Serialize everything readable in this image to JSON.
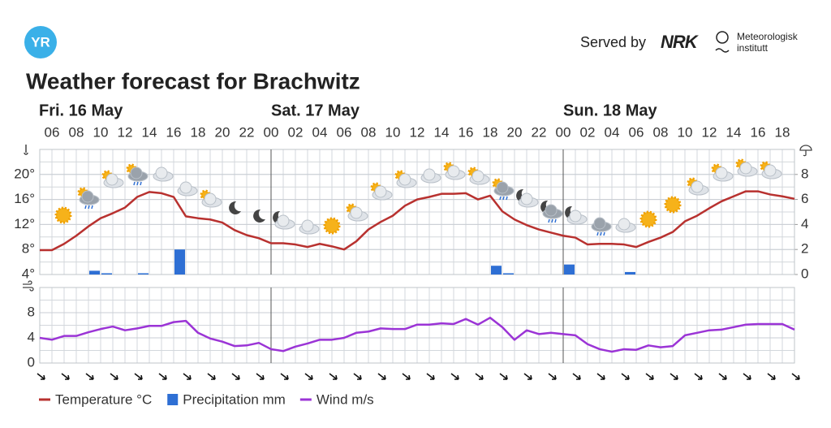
{
  "header": {
    "logo": "YR",
    "served_by": "Served by",
    "brand": "NRK",
    "institute": [
      "Meteorologisk",
      "institutt"
    ]
  },
  "chart_data": [
    {
      "type": "line",
      "title": "Weather forecast for Brachwitz",
      "days": [
        "Fri. 16 May",
        "Sat. 17 May",
        "Sun. 18 May"
      ],
      "times": [
        "06",
        "08",
        "10",
        "12",
        "14",
        "16",
        "18",
        "20",
        "22",
        "00",
        "02",
        "04",
        "06",
        "08",
        "10",
        "12",
        "14",
        "16",
        "18",
        "20",
        "22",
        "00",
        "02",
        "04",
        "06",
        "08",
        "10",
        "12",
        "14",
        "16",
        "18"
      ],
      "ylim": [
        4,
        24
      ],
      "yticks": [
        {
          "value": 4,
          "label": "4°"
        },
        {
          "value": 8,
          "label": "8°"
        },
        {
          "value": 12,
          "label": "12°"
        },
        {
          "value": 16,
          "label": "16°"
        },
        {
          "value": 20,
          "label": "20°"
        }
      ],
      "y2lim": [
        0,
        10
      ],
      "y2ticks": [
        0,
        2,
        4,
        6,
        8
      ],
      "grid": true,
      "series": [
        {
          "name": "Temperature °C",
          "color": "#b8312f",
          "values": [
            7.9,
            7.9,
            8.9,
            10.2,
            11.7,
            13.0,
            13.8,
            14.7,
            16.4,
            17.2,
            17.0,
            16.4,
            13.3,
            13.0,
            12.8,
            12.3,
            11.1,
            10.3,
            9.8,
            9.0,
            9.0,
            8.8,
            8.4,
            8.9,
            8.5,
            8.0,
            9.3,
            11.2,
            12.4,
            13.4,
            15.0,
            16.0,
            16.4,
            16.9,
            16.9,
            17.0,
            16.0,
            16.6,
            14.1,
            12.8,
            11.9,
            11.2,
            10.7,
            10.2,
            9.9,
            8.8,
            8.9,
            8.9,
            8.8,
            8.4,
            9.2,
            9.9,
            10.8,
            12.5,
            13.4,
            14.6,
            15.7,
            16.5,
            17.3,
            17.3,
            16.8,
            16.5,
            16.1
          ]
        },
        {
          "name": "Precipitation mm",
          "color": "#2e6fd4",
          "axis": "y2",
          "values": [
            0,
            0,
            0,
            0,
            0.3,
            0.1,
            0,
            0,
            0.1,
            0,
            0,
            2.0,
            0,
            0,
            0,
            0,
            0,
            0,
            0,
            0,
            0,
            0,
            0,
            0,
            0,
            0,
            0,
            0,
            0,
            0,
            0,
            0,
            0,
            0,
            0,
            0,
            0,
            0.7,
            0.1,
            0,
            0,
            0,
            0,
            0.8,
            0,
            0,
            0,
            0,
            0.2,
            0,
            0,
            0,
            0,
            0,
            0,
            0,
            0,
            0,
            0,
            0,
            0,
            0,
            0
          ]
        }
      ]
    },
    {
      "type": "line",
      "ylim": [
        0,
        12
      ],
      "yticks": [
        0,
        4,
        8
      ],
      "grid": true,
      "series": [
        {
          "name": "Wind m/s",
          "color": "#9b34d6",
          "values": [
            4.0,
            3.7,
            4.3,
            4.3,
            4.9,
            5.4,
            5.8,
            5.2,
            5.5,
            5.9,
            5.9,
            6.5,
            6.7,
            4.8,
            3.9,
            3.4,
            2.7,
            2.8,
            3.2,
            2.2,
            1.9,
            2.6,
            3.1,
            3.7,
            3.7,
            4.0,
            4.8,
            5.0,
            5.5,
            5.4,
            5.4,
            6.1,
            6.1,
            6.3,
            6.2,
            7.0,
            6.1,
            7.2,
            5.7,
            3.7,
            5.2,
            4.6,
            4.8,
            4.6,
            4.4,
            3.0,
            2.2,
            1.8,
            2.2,
            2.1,
            2.8,
            2.5,
            2.7,
            4.4,
            4.8,
            5.2,
            5.3,
            5.7,
            6.1,
            6.2,
            6.2,
            6.2,
            5.3
          ]
        }
      ]
    }
  ]
}
